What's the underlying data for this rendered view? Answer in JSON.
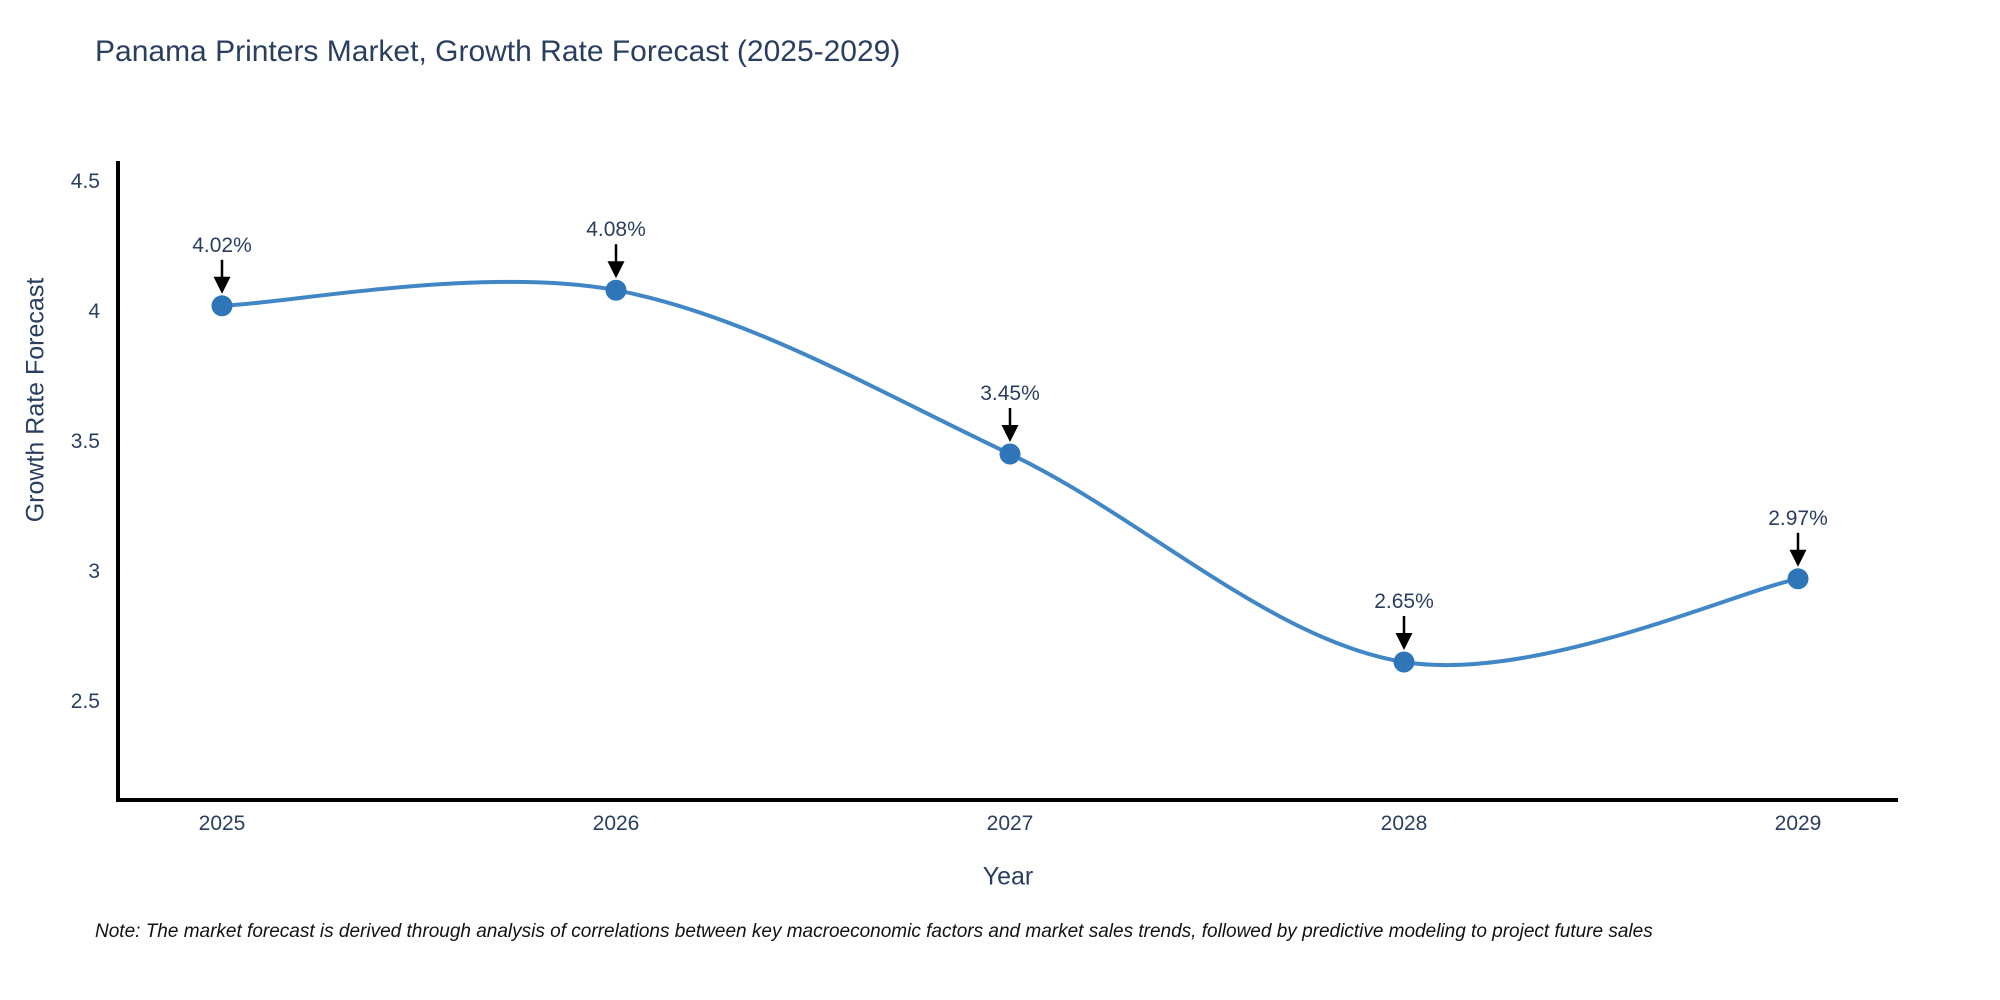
{
  "title": "Panama Printers Market, Growth Rate Forecast (2025-2029)",
  "note": "Note: The market forecast is derived through analysis of correlations between key macroeconomic factors and market sales trends, followed by predictive modeling to project future sales",
  "chart_data": {
    "type": "line",
    "title": "Panama Printers Market, Growth Rate Forecast (2025-2029)",
    "xlabel": "Year",
    "ylabel": "Growth Rate Forecast",
    "x": [
      "2025",
      "2026",
      "2027",
      "2028",
      "2029"
    ],
    "series": [
      {
        "name": "Growth Rate Forecast",
        "values": [
          4.02,
          4.08,
          3.45,
          2.65,
          2.97
        ]
      }
    ],
    "point_labels": [
      "4.02%",
      "4.08%",
      "3.45%",
      "2.65%",
      "2.97%"
    ],
    "yticks": [
      4.5,
      4,
      3.5,
      3,
      2.5
    ],
    "ylim": [
      2.2,
      4.58
    ],
    "grid": false,
    "legend": false,
    "line_shape": "spline",
    "annotation_style": "value label with down arrow onto point",
    "colors": {
      "line": "#4287c5",
      "marker": "#2f76b9",
      "arrow": "#000000",
      "axis_line": "#000000",
      "title_text": "#2a3f5f",
      "tick_text": "#2a3f5f",
      "annotation_text": "#2a3f5f",
      "note_text": "#111111",
      "background": "#ffffff"
    }
  }
}
